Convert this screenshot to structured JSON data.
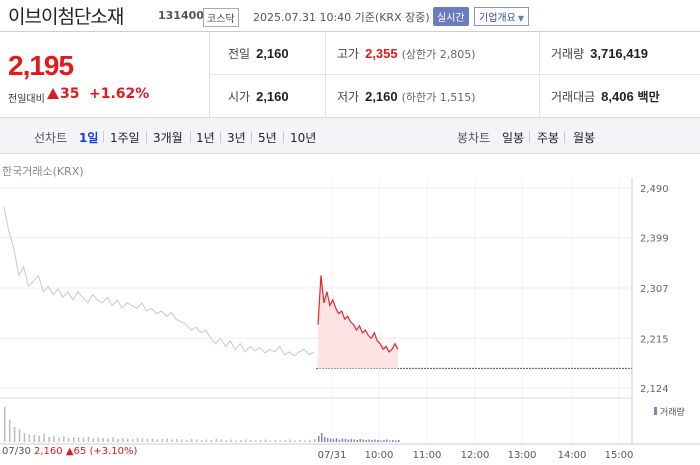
{
  "header": {
    "stock_name": "이브이첨단소재",
    "stock_code": "131400",
    "market": "코스닥",
    "date": "2025.07.31 10:40 기준(KRX 장중)",
    "realtime_label": "실시간",
    "company_button": "기업개요"
  },
  "summary": {
    "current_price": "2,195",
    "change_label": "전일대비",
    "change_value": "35",
    "change_percent": "+1.62%",
    "prev_close": {
      "label": "전일",
      "value": "2,160"
    },
    "high": {
      "label": "고가",
      "value": "2,355",
      "sub_prefix": "(상한가 ",
      "sub_value": "2,805",
      "sub_suffix": ")"
    },
    "volume": {
      "label": "거래량",
      "value": "3,716,419"
    },
    "open": {
      "label": "시가",
      "value": "2,160"
    },
    "low": {
      "label": "저가",
      "value": "2,160",
      "sub_prefix": "(하한가 ",
      "sub_value": "1,515",
      "sub_suffix": ")"
    },
    "trade_amount": {
      "label": "거래대금",
      "value": "8,406",
      "unit": "백만"
    }
  },
  "tabs": {
    "line_label": "선차트",
    "line_tabs": [
      "1일",
      "1주일",
      "3개월",
      "1년",
      "3년",
      "5년",
      "10년"
    ],
    "candle_label": "봉차트",
    "candle_tabs": [
      "일봉",
      "주봉",
      "월봉"
    ]
  },
  "chart": {
    "source": "한국거래소(KRX)",
    "volume_legend": "거래량",
    "footer": {
      "date": "07/30",
      "price": "2,160",
      "change": "65",
      "percent": "(+3.10%)"
    },
    "colors": {
      "today": "#e8262a",
      "prev": "#c8c8c8",
      "fill": "#fde3e3",
      "volume": "#7c86c9"
    }
  },
  "chart_data": {
    "type": "line",
    "y_ticks": [
      2490,
      2399,
      2307,
      2215,
      2124
    ],
    "ylim": [
      2124,
      2490
    ],
    "x_ticks": [
      "07/30",
      "07/31",
      "10:00",
      "11:00",
      "12:00",
      "13:00",
      "14:00",
      "15:00"
    ],
    "series": [
      {
        "values": [
          2455,
          2410,
          2380,
          2330,
          2345,
          2310,
          2320,
          2330,
          2300,
          2310,
          2295,
          2305,
          2290,
          2300,
          2285,
          2300,
          2290,
          2280,
          2295,
          2285,
          2280,
          2290,
          2275,
          2285,
          2270,
          2280,
          2275,
          2270,
          2280,
          2265,
          2270,
          2260,
          2265,
          2255,
          2262,
          2250,
          2245,
          2240,
          2230,
          2235,
          2225,
          2230,
          2215,
          2205,
          2215,
          2200,
          2210,
          2195,
          2205,
          2190,
          2200,
          2192,
          2198,
          2188,
          2195,
          2190,
          2200,
          2185,
          2190,
          2183,
          2190,
          2195,
          2185,
          2190
        ]
      },
      {
        "values": [
          2240,
          2330,
          2280,
          2300,
          2275,
          2285,
          2270,
          2260,
          2265,
          2250,
          2255,
          2245,
          2240,
          2230,
          2238,
          2225,
          2230,
          2220,
          2215,
          2225,
          2210,
          2205,
          2195,
          2200,
          2190,
          2195,
          2205,
          2195
        ]
      }
    ],
    "volume": {
      "name": "거래량",
      "prev_day": [
        70,
        45,
        30,
        25,
        18,
        15,
        14,
        12,
        16,
        10,
        12,
        9,
        11,
        8,
        10,
        9,
        8,
        10,
        7,
        9,
        8,
        7,
        9,
        6,
        8,
        7,
        6,
        8,
        7,
        6,
        7,
        5,
        6,
        7,
        5,
        6,
        5,
        4,
        6,
        5,
        4,
        5,
        4,
        6,
        5,
        4,
        5,
        3,
        4,
        5,
        4,
        3,
        4,
        5,
        3,
        4,
        3,
        4,
        5,
        3,
        4,
        3,
        4,
        6
      ],
      "today": [
        12,
        18,
        10,
        8,
        7,
        6,
        8,
        5,
        7,
        6,
        5,
        6,
        5,
        4,
        6,
        5,
        4,
        5,
        4,
        5,
        4,
        3,
        4,
        5,
        3,
        4,
        3,
        4
      ]
    }
  }
}
